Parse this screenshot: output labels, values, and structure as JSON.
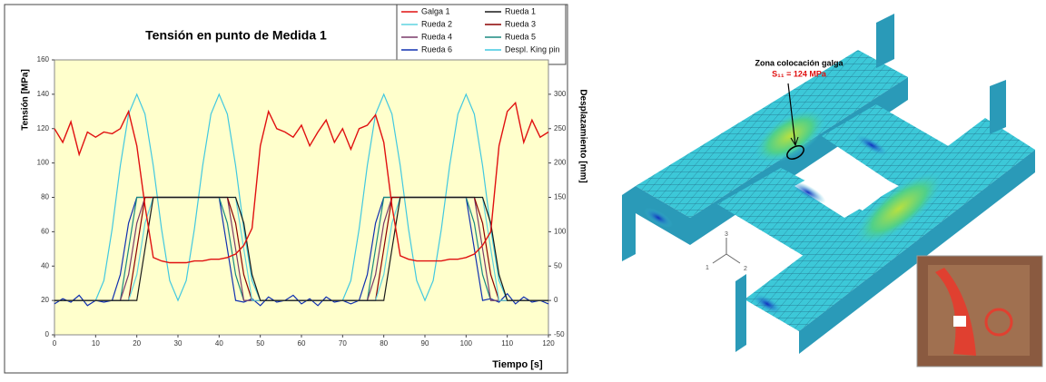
{
  "chart_data": {
    "type": "line",
    "title": "Tensión en punto de Medida 1",
    "xlabel": "Tiempo [s]",
    "ylabel": "Tensión [MPa]",
    "y2label": "Desplazamiento [mm]",
    "x": [
      0,
      2,
      4,
      6,
      8,
      10,
      12,
      14,
      16,
      18,
      20,
      22,
      24,
      26,
      28,
      30,
      32,
      34,
      36,
      38,
      40,
      42,
      44,
      46,
      48,
      50,
      52,
      54,
      56,
      58,
      60,
      62,
      64,
      66,
      68,
      70,
      72,
      74,
      76,
      78,
      80,
      82,
      84,
      86,
      88,
      90,
      92,
      94,
      96,
      98,
      100,
      102,
      104,
      106,
      108,
      110,
      112,
      114,
      116,
      118,
      120
    ],
    "xlim": [
      0,
      120
    ],
    "xticks": [
      0,
      10,
      20,
      30,
      40,
      50,
      60,
      70,
      80,
      90,
      100,
      110,
      120
    ],
    "ylim": [
      0,
      160
    ],
    "yticks": [
      0,
      20,
      40,
      60,
      80,
      100,
      120,
      140,
      160
    ],
    "y2lim": [
      -50,
      350
    ],
    "y2ticks": [
      -50,
      0,
      50,
      100,
      150,
      200,
      250,
      300
    ],
    "grid": false,
    "background": "#ffffcc",
    "series": [
      {
        "name": "Galga  1",
        "color": "#e01010",
        "values": [
          120,
          112,
          124,
          105,
          118,
          115,
          118,
          117,
          120,
          130,
          110,
          75,
          45,
          43,
          42,
          42,
          42,
          43,
          43,
          44,
          44,
          45,
          47,
          52,
          62,
          110,
          130,
          120,
          118,
          115,
          122,
          110,
          118,
          125,
          112,
          120,
          108,
          120,
          122,
          128,
          112,
          75,
          46,
          44,
          43,
          43,
          43,
          43,
          44,
          44,
          45,
          47,
          52,
          60,
          110,
          130,
          135,
          112,
          125,
          115,
          118
        ]
      },
      {
        "name": "Rueda  1",
        "color": "#1a1a1a",
        "values": [
          20,
          20,
          20,
          20,
          20,
          20,
          20,
          20,
          20,
          20,
          20,
          50,
          80,
          80,
          80,
          80,
          80,
          80,
          80,
          80,
          80,
          80,
          80,
          65,
          35,
          20,
          20,
          20,
          20,
          20,
          20,
          20,
          20,
          20,
          20,
          20,
          20,
          20,
          20,
          20,
          20,
          50,
          80,
          80,
          80,
          80,
          80,
          80,
          80,
          80,
          80,
          80,
          80,
          65,
          35,
          20,
          20,
          20,
          20,
          20,
          20
        ]
      },
      {
        "name": "Rueda  2",
        "color": "#5fd3e0",
        "values": [
          20,
          20,
          20,
          20,
          20,
          20,
          20,
          20,
          20,
          20,
          35,
          65,
          80,
          80,
          80,
          80,
          80,
          80,
          80,
          80,
          80,
          80,
          80,
          50,
          20,
          20,
          20,
          20,
          20,
          20,
          20,
          20,
          20,
          20,
          20,
          20,
          20,
          20,
          20,
          20,
          35,
          65,
          80,
          80,
          80,
          80,
          80,
          80,
          80,
          80,
          80,
          80,
          80,
          50,
          20,
          20,
          20,
          20,
          20,
          20,
          20
        ]
      },
      {
        "name": "Rueda  3",
        "color": "#8b0000",
        "values": [
          20,
          20,
          20,
          20,
          20,
          20,
          20,
          20,
          20,
          20,
          50,
          80,
          80,
          80,
          80,
          80,
          80,
          80,
          80,
          80,
          80,
          80,
          65,
          35,
          20,
          20,
          20,
          20,
          20,
          20,
          20,
          20,
          20,
          20,
          20,
          20,
          20,
          20,
          20,
          20,
          50,
          80,
          80,
          80,
          80,
          80,
          80,
          80,
          80,
          80,
          80,
          80,
          65,
          35,
          20,
          20,
          20,
          20,
          20,
          20,
          20
        ]
      },
      {
        "name": "Rueda  4",
        "color": "#7a3a6a",
        "values": [
          20,
          20,
          20,
          20,
          20,
          20,
          20,
          20,
          20,
          35,
          65,
          80,
          80,
          80,
          80,
          80,
          80,
          80,
          80,
          80,
          80,
          80,
          50,
          20,
          20,
          20,
          20,
          20,
          20,
          20,
          20,
          20,
          20,
          20,
          20,
          20,
          20,
          20,
          20,
          35,
          65,
          80,
          80,
          80,
          80,
          80,
          80,
          80,
          80,
          80,
          80,
          80,
          50,
          20,
          20,
          20,
          20,
          20,
          20,
          20,
          20
        ]
      },
      {
        "name": "Rueda  5",
        "color": "#1a8a80",
        "values": [
          20,
          20,
          20,
          20,
          20,
          20,
          20,
          20,
          20,
          50,
          80,
          80,
          80,
          80,
          80,
          80,
          80,
          80,
          80,
          80,
          80,
          65,
          35,
          20,
          20,
          20,
          20,
          20,
          20,
          20,
          20,
          20,
          20,
          20,
          20,
          20,
          20,
          20,
          20,
          50,
          80,
          80,
          80,
          80,
          80,
          80,
          80,
          80,
          80,
          80,
          80,
          65,
          35,
          20,
          20,
          20,
          20,
          20,
          20,
          20,
          20
        ]
      },
      {
        "name": "Rueda  6",
        "color": "#1030b0",
        "values": [
          18,
          21,
          19,
          23,
          17,
          20,
          19,
          20,
          35,
          65,
          80,
          80,
          80,
          80,
          80,
          80,
          80,
          80,
          80,
          80,
          80,
          50,
          20,
          19,
          21,
          17,
          22,
          19,
          20,
          23,
          18,
          21,
          17,
          22,
          19,
          20,
          18,
          20,
          35,
          65,
          80,
          80,
          80,
          80,
          80,
          80,
          80,
          80,
          80,
          80,
          80,
          50,
          20,
          21,
          19,
          24,
          18,
          22,
          19,
          20,
          18
        ]
      },
      {
        "name": "Despl.  King pin",
        "color": "#40c8e0",
        "axis": "y2",
        "values": [
          0,
          0,
          0,
          0,
          0,
          0,
          29,
          104,
          196,
          271,
          300,
          271,
          196,
          104,
          29,
          0,
          29,
          104,
          196,
          271,
          300,
          271,
          196,
          104,
          29,
          0,
          0,
          0,
          0,
          0,
          0,
          0,
          0,
          0,
          0,
          0,
          29,
          104,
          196,
          271,
          300,
          271,
          196,
          104,
          29,
          0,
          29,
          104,
          196,
          271,
          300,
          271,
          196,
          104,
          29,
          0,
          0,
          0,
          0,
          0,
          0
        ]
      }
    ]
  },
  "figure": {
    "zone_label": "Zona colocación galga",
    "stress_label": "S₁₁ = 124 MPa",
    "triad": [
      "1",
      "2",
      "3"
    ]
  }
}
